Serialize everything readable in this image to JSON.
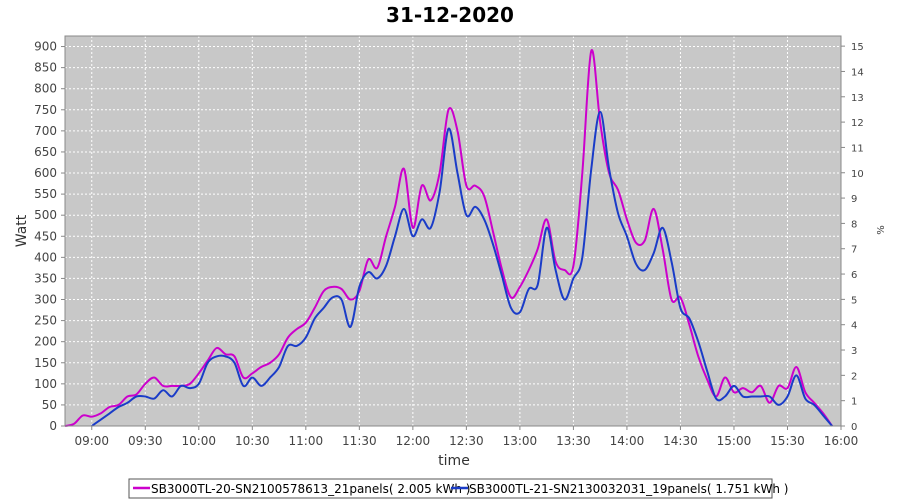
{
  "chart_data": {
    "type": "line",
    "title": "31-12-2020",
    "xlabel": "time",
    "ylabel": "Watt",
    "y2label": "%",
    "xlim": [
      "08:45",
      "16:00"
    ],
    "ylim": [
      0,
      925
    ],
    "y2lim": [
      0,
      15.4
    ],
    "x_ticks": [
      "09:00",
      "09:30",
      "10:00",
      "10:30",
      "11:00",
      "11:30",
      "12:00",
      "12:30",
      "13:00",
      "13:30",
      "14:00",
      "14:30",
      "15:00",
      "15:30",
      "16:00"
    ],
    "y_ticks": [
      0,
      50,
      100,
      150,
      200,
      250,
      300,
      350,
      400,
      450,
      500,
      550,
      600,
      650,
      700,
      750,
      800,
      850,
      900
    ],
    "y2_ticks": [
      0,
      1,
      2,
      3,
      4,
      5,
      6,
      7,
      8,
      9,
      10,
      11,
      12,
      13,
      14,
      15
    ],
    "grid": true,
    "legend_position": "bottom",
    "x": [
      "08:45",
      "08:50",
      "08:55",
      "09:00",
      "09:05",
      "09:10",
      "09:15",
      "09:20",
      "09:25",
      "09:30",
      "09:35",
      "09:40",
      "09:45",
      "09:50",
      "09:55",
      "10:00",
      "10:05",
      "10:10",
      "10:15",
      "10:20",
      "10:25",
      "10:30",
      "10:35",
      "10:40",
      "10:45",
      "10:50",
      "10:55",
      "11:00",
      "11:05",
      "11:10",
      "11:15",
      "11:20",
      "11:25",
      "11:30",
      "11:35",
      "11:40",
      "11:45",
      "11:50",
      "11:55",
      "12:00",
      "12:05",
      "12:10",
      "12:15",
      "12:20",
      "12:25",
      "12:30",
      "12:35",
      "12:40",
      "12:45",
      "12:50",
      "12:55",
      "13:00",
      "13:05",
      "13:10",
      "13:15",
      "13:20",
      "13:25",
      "13:30",
      "13:35",
      "13:40",
      "13:45",
      "13:50",
      "13:55",
      "14:00",
      "14:05",
      "14:10",
      "14:15",
      "14:20",
      "14:25",
      "14:30",
      "14:35",
      "14:40",
      "14:45",
      "14:50",
      "14:55",
      "15:00",
      "15:05",
      "15:10",
      "15:15",
      "15:20",
      "15:25",
      "15:30",
      "15:35",
      "15:40",
      "15:45",
      "15:50",
      "15:55"
    ],
    "series": [
      {
        "name": "SB3000TL-20-SN2100578613_21panels( 2.005 kWh )",
        "color": "#cc00cc",
        "values": [
          0,
          5,
          25,
          22,
          30,
          45,
          50,
          70,
          75,
          100,
          115,
          95,
          95,
          95,
          100,
          125,
          155,
          185,
          170,
          165,
          115,
          125,
          140,
          150,
          170,
          210,
          230,
          245,
          280,
          320,
          330,
          325,
          300,
          320,
          395,
          375,
          450,
          520,
          610,
          470,
          570,
          535,
          600,
          750,
          700,
          570,
          570,
          545,
          460,
          370,
          305,
          330,
          370,
          420,
          490,
          390,
          370,
          380,
          600,
          890,
          720,
          600,
          560,
          490,
          435,
          440,
          515,
          420,
          300,
          305,
          240,
          165,
          110,
          70,
          115,
          80,
          90,
          80,
          95,
          55,
          95,
          90,
          140,
          80,
          55,
          30,
          0
        ]
      },
      {
        "name": "SB3000TL-21-SN2130032031_19panels( 1.751 kWh )",
        "color": "#1a3cc8",
        "values": [
          null,
          null,
          null,
          0,
          15,
          30,
          45,
          55,
          70,
          70,
          65,
          85,
          70,
          95,
          90,
          100,
          150,
          165,
          165,
          150,
          95,
          115,
          95,
          115,
          140,
          190,
          190,
          210,
          255,
          280,
          305,
          300,
          235,
          330,
          365,
          350,
          380,
          450,
          515,
          450,
          490,
          470,
          555,
          705,
          600,
          500,
          520,
          490,
          430,
          355,
          280,
          270,
          325,
          335,
          470,
          370,
          300,
          350,
          400,
          610,
          745,
          610,
          505,
          450,
          385,
          370,
          410,
          470,
          390,
          280,
          255,
          200,
          130,
          65,
          70,
          95,
          70,
          70,
          70,
          70,
          50,
          70,
          120,
          65,
          50,
          25,
          0
        ]
      }
    ]
  }
}
